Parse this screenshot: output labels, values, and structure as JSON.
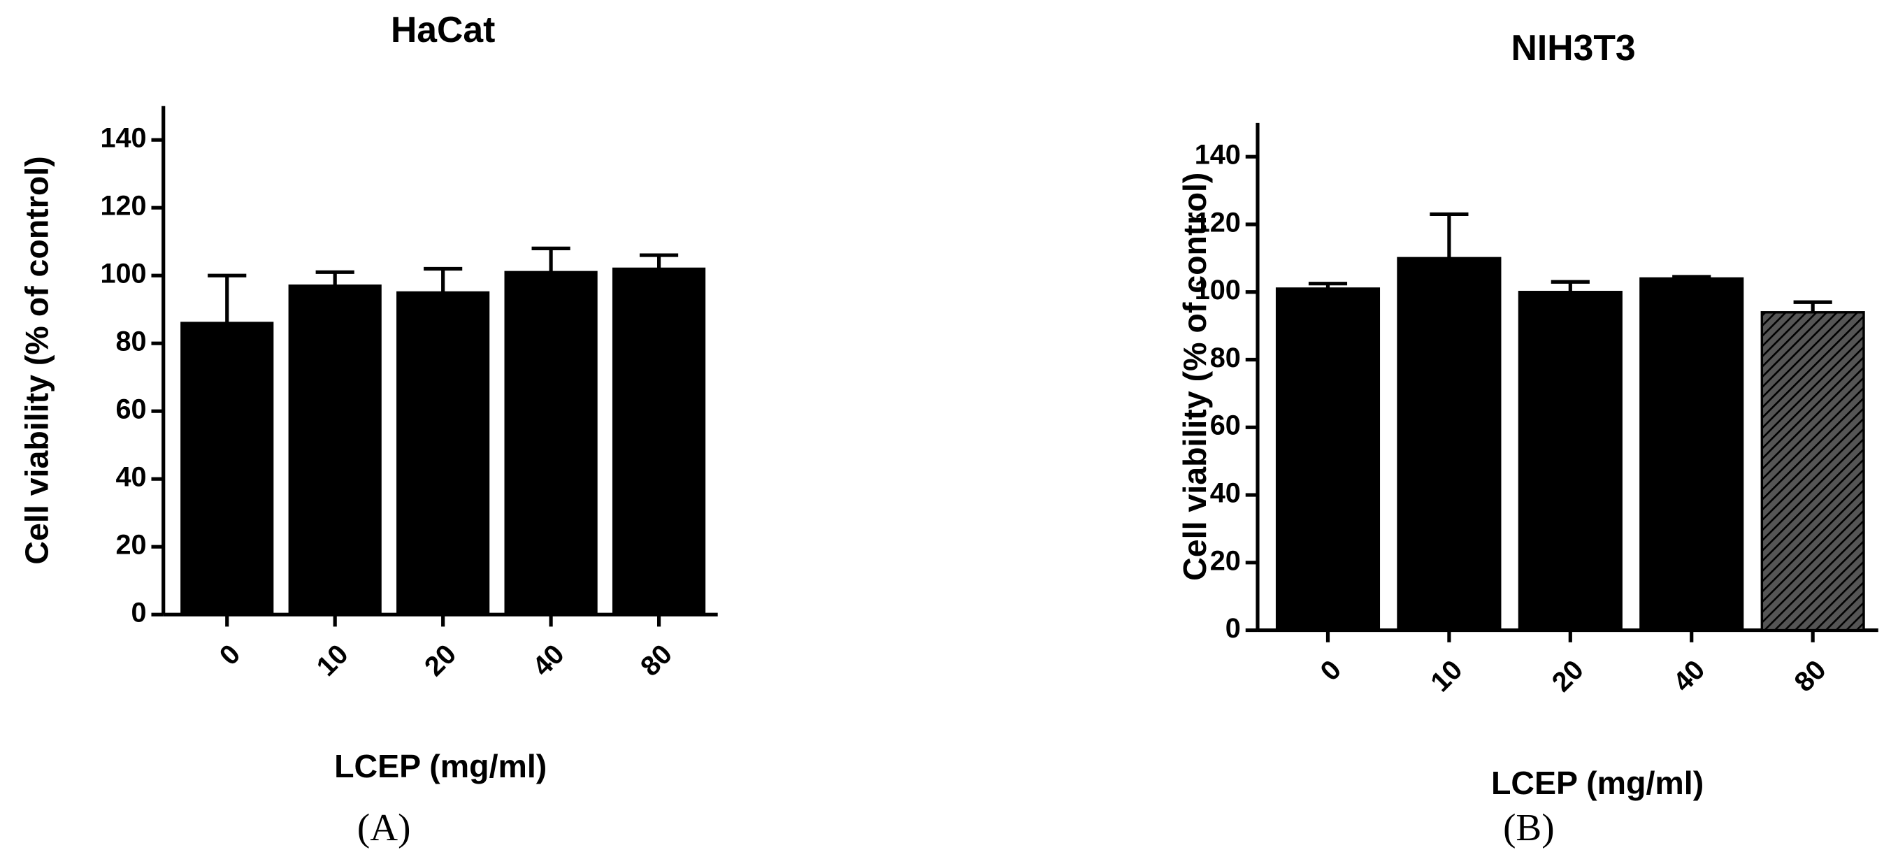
{
  "chart_data": [
    {
      "type": "bar",
      "title": "HaCat",
      "x_label": "LCEP (mg/ml)",
      "y_label": "Cell viability (% of control)",
      "panel_label": "(A)",
      "categories": [
        "0",
        "10",
        "20",
        "40",
        "80"
      ],
      "values": [
        86,
        97,
        95,
        101,
        102
      ],
      "errors": [
        14,
        4,
        7,
        7,
        4
      ],
      "color": "#000000",
      "hatched": [
        false,
        false,
        false,
        false,
        false
      ],
      "ylim": [
        0,
        150
      ],
      "yticks": [
        0,
        20,
        40,
        60,
        80,
        100,
        120,
        140
      ]
    },
    {
      "type": "bar",
      "title": "NIH3T3",
      "x_label": "LCEP (mg/ml)",
      "y_label": "Cell viability (% of control)",
      "panel_label": "(B)",
      "categories": [
        "0",
        "10",
        "20",
        "40",
        "80"
      ],
      "values": [
        101,
        110,
        100,
        104,
        94
      ],
      "errors": [
        1.5,
        13,
        3,
        0.5,
        3
      ],
      "color": "#000000",
      "hatched": [
        false,
        false,
        false,
        false,
        true
      ],
      "ylim": [
        0,
        150
      ],
      "yticks": [
        0,
        20,
        40,
        60,
        80,
        100,
        120,
        140
      ]
    }
  ]
}
